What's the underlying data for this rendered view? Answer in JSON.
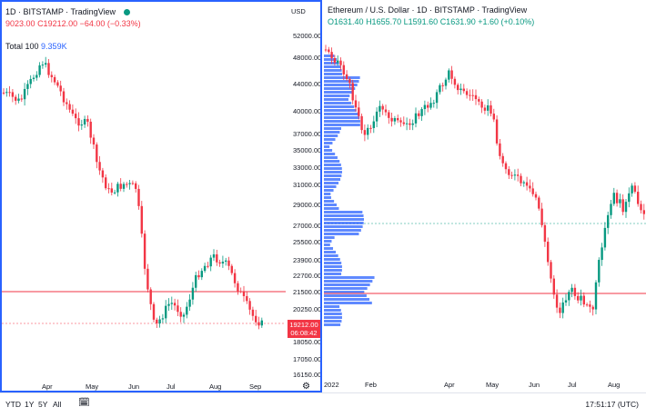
{
  "left_chart": {
    "header_line1": "1D · BITSTAMP · TradingView",
    "ohlc_partial": "9023.00",
    "close": "C19212.00",
    "change": "−64.00 (−0.33%)",
    "indicator_name": "Total 100",
    "indicator_value": "9.359K",
    "currency_label": "USD",
    "price_ticks": [
      "52000.00",
      "48000.00",
      "44000.00",
      "40000.00",
      "37000.00",
      "35000.00",
      "33000.00",
      "31000.00",
      "29000.00",
      "27000.00",
      "25500.00",
      "23900.00",
      "22700.00",
      "21500.00",
      "20250.00",
      "18050.00",
      "17050.00",
      "16150.00"
    ],
    "price_badge_value": "19212.00",
    "price_badge_timer": "06:08:42",
    "time_ticks": [
      "Apr",
      "May",
      "Jun",
      "Jul",
      "Aug",
      "Sep"
    ]
  },
  "right_chart": {
    "title": "Ethereum / U.S. Dollar · 1D · BITSTAMP · TradingView",
    "open": "O1631.40",
    "high": "H1655.70",
    "low": "L1591.60",
    "close": "C1631.90",
    "change": "+1.60 (+0.10%)",
    "time_ticks": [
      "2022",
      "Feb",
      "Apr",
      "May",
      "Jun",
      "Jul",
      "Aug"
    ]
  },
  "bottom_bar": {
    "ranges": [
      "YTD",
      "1Y",
      "5Y",
      "All"
    ],
    "clock": "17:51:17 (UTC)"
  },
  "colors": {
    "up": "#089981",
    "down": "#f23645",
    "accent": "#2962ff",
    "volume_profile": "#2962ff"
  }
}
